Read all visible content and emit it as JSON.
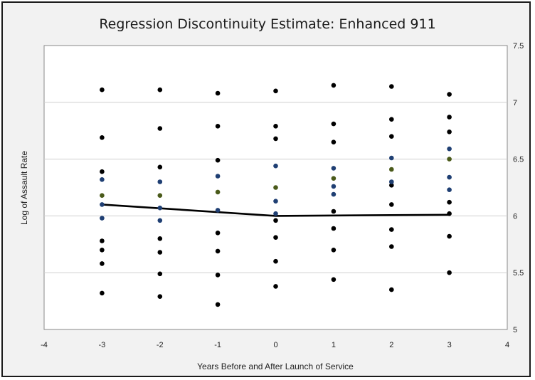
{
  "chart_data": {
    "type": "scatter",
    "title": "Regression Discontinuity Estimate: Enhanced 911",
    "xlabel": "Years Before and After Launch of Service",
    "ylabel": "Log of Assault Rate",
    "xlim": [
      -4,
      4
    ],
    "ylim": [
      5,
      7.5
    ],
    "x_ticks": [
      -4,
      -3,
      -2,
      -1,
      0,
      1,
      2,
      3,
      4
    ],
    "y_ticks": [
      5,
      5.5,
      6,
      6.5,
      7,
      7.5
    ],
    "y_axis_side": "right",
    "grid": "horizontal",
    "legend": "none",
    "colors": {
      "points": "#000000",
      "blue": "#1f3f73",
      "green": "#4a5a1a",
      "line": "#000000",
      "grid": "#d0d0d0"
    },
    "series": [
      {
        "style": "points",
        "color": "#000000",
        "points": [
          [
            -3,
            7.11
          ],
          [
            -3,
            6.69
          ],
          [
            -3,
            6.39
          ],
          [
            -3,
            5.78
          ],
          [
            -3,
            5.7
          ],
          [
            -3,
            5.58
          ],
          [
            -3,
            5.32
          ],
          [
            -2,
            7.11
          ],
          [
            -2,
            6.77
          ],
          [
            -2,
            6.43
          ],
          [
            -2,
            5.8
          ],
          [
            -2,
            5.68
          ],
          [
            -2,
            5.49
          ],
          [
            -2,
            5.29
          ],
          [
            -1,
            7.08
          ],
          [
            -1,
            6.79
          ],
          [
            -1,
            6.49
          ],
          [
            -1,
            5.85
          ],
          [
            -1,
            5.69
          ],
          [
            -1,
            5.48
          ],
          [
            -1,
            5.22
          ],
          [
            0,
            7.1
          ],
          [
            0,
            6.79
          ],
          [
            0,
            6.68
          ],
          [
            0,
            5.96
          ],
          [
            0,
            5.81
          ],
          [
            0,
            5.6
          ],
          [
            0,
            5.38
          ],
          [
            1,
            7.15
          ],
          [
            1,
            6.81
          ],
          [
            1,
            6.65
          ],
          [
            1,
            6.04
          ],
          [
            1,
            5.89
          ],
          [
            1,
            5.7
          ],
          [
            1,
            5.44
          ],
          [
            2,
            7.14
          ],
          [
            2,
            6.85
          ],
          [
            2,
            6.7
          ],
          [
            2,
            6.27
          ],
          [
            2,
            6.1
          ],
          [
            2,
            5.88
          ],
          [
            2,
            5.73
          ],
          [
            2,
            5.35
          ],
          [
            3,
            7.07
          ],
          [
            3,
            6.87
          ],
          [
            3,
            6.74
          ],
          [
            3,
            6.12
          ],
          [
            3,
            6.02
          ],
          [
            3,
            5.82
          ],
          [
            3,
            5.5
          ]
        ]
      },
      {
        "style": "points",
        "color": "#1f3f73",
        "points": [
          [
            -3,
            6.32
          ],
          [
            -3,
            6.1
          ],
          [
            -3,
            5.98
          ],
          [
            -2,
            6.3
          ],
          [
            -2,
            6.07
          ],
          [
            -2,
            5.96
          ],
          [
            -1,
            6.35
          ],
          [
            -1,
            6.05
          ],
          [
            0,
            6.44
          ],
          [
            0,
            6.13
          ],
          [
            0,
            6.02
          ],
          [
            1,
            6.42
          ],
          [
            1,
            6.26
          ],
          [
            1,
            6.19
          ],
          [
            2,
            6.51
          ],
          [
            2,
            6.3
          ],
          [
            3,
            6.59
          ],
          [
            3,
            6.34
          ],
          [
            3,
            6.23
          ]
        ]
      },
      {
        "style": "points",
        "color": "#4a5a1a",
        "points": [
          [
            -3,
            6.18
          ],
          [
            -2,
            6.18
          ],
          [
            -1,
            6.21
          ],
          [
            0,
            6.25
          ],
          [
            1,
            6.33
          ],
          [
            2,
            6.41
          ],
          [
            3,
            6.5
          ]
        ]
      },
      {
        "style": "line",
        "color": "#000000",
        "points": [
          [
            -3,
            6.1
          ],
          [
            0,
            6.0
          ],
          [
            3,
            6.01
          ]
        ]
      }
    ]
  }
}
